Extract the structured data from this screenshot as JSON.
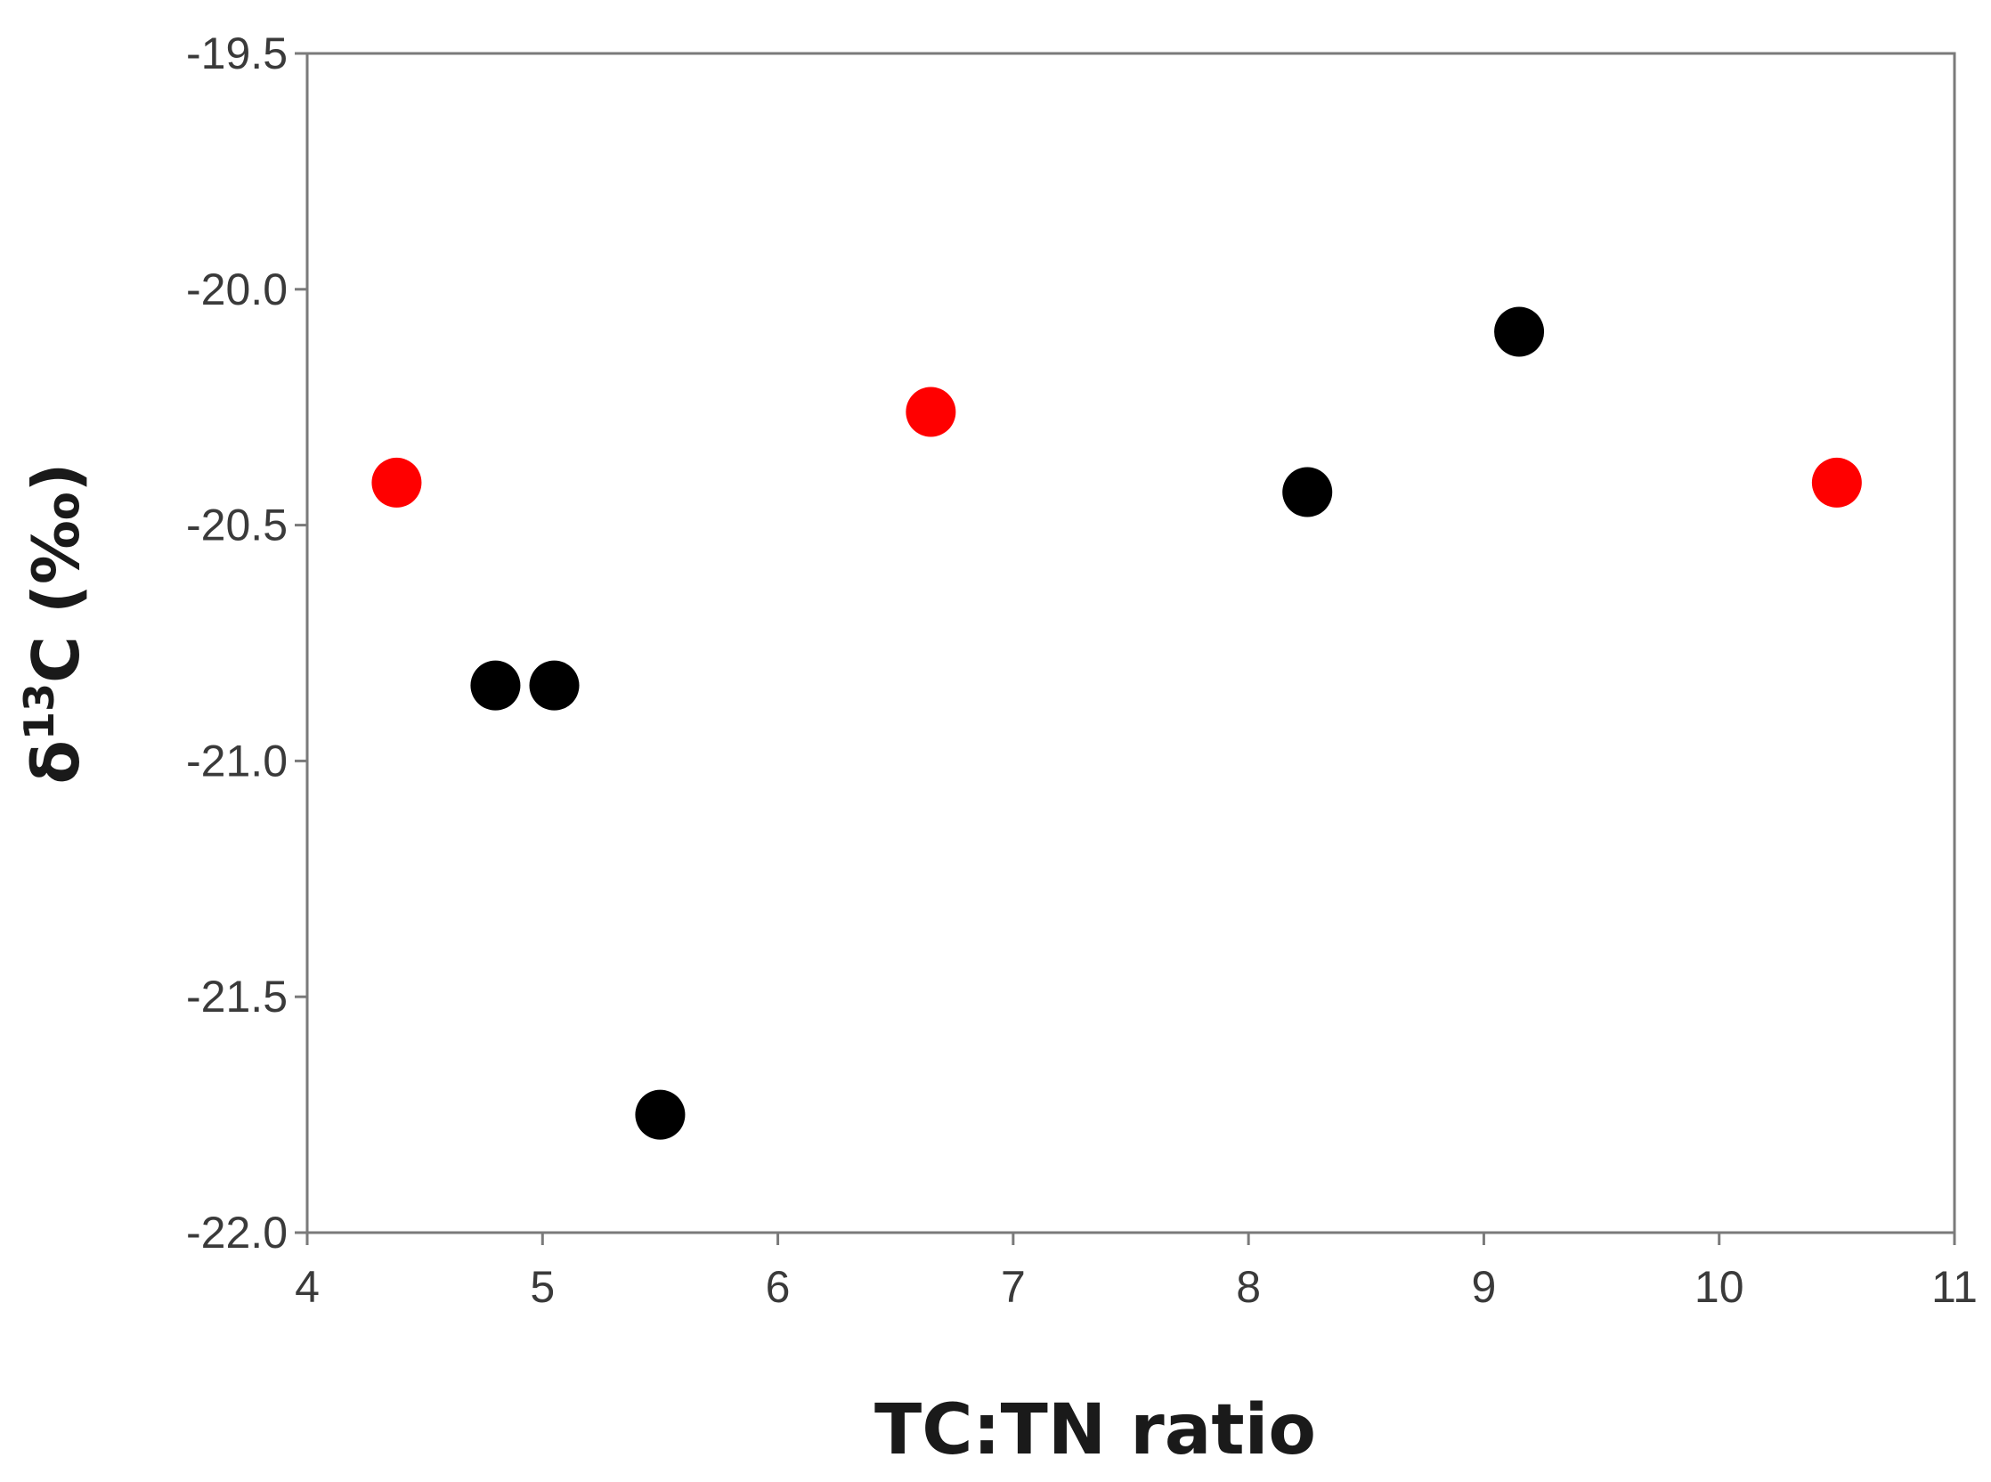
{
  "chart_data": {
    "type": "scatter",
    "title": "",
    "xlabel": "TC:TN ratio",
    "ylabel_prefix": "δ",
    "ylabel_sup": "13",
    "ylabel_suffix": "C (‰)",
    "xlim": [
      4,
      11
    ],
    "ylim": [
      -22.0,
      -19.5
    ],
    "x_ticks": [
      "4",
      "5",
      "6",
      "7",
      "8",
      "9",
      "10",
      "11"
    ],
    "y_ticks": [
      "-19.5",
      "-20.0",
      "-20.5",
      "-21.0",
      "-21.5",
      "-22.0"
    ],
    "grid": false,
    "series": [
      {
        "color": "#000000",
        "points": [
          {
            "x": 4.8,
            "y": -20.84
          },
          {
            "x": 5.05,
            "y": -20.84
          },
          {
            "x": 5.5,
            "y": -21.75
          },
          {
            "x": 8.25,
            "y": -20.43
          },
          {
            "x": 9.15,
            "y": -20.09
          }
        ]
      },
      {
        "color": "#ff0000",
        "points": [
          {
            "x": 4.38,
            "y": -20.41
          },
          {
            "x": 6.65,
            "y": -20.26
          },
          {
            "x": 10.5,
            "y": -20.41
          }
        ]
      }
    ]
  }
}
